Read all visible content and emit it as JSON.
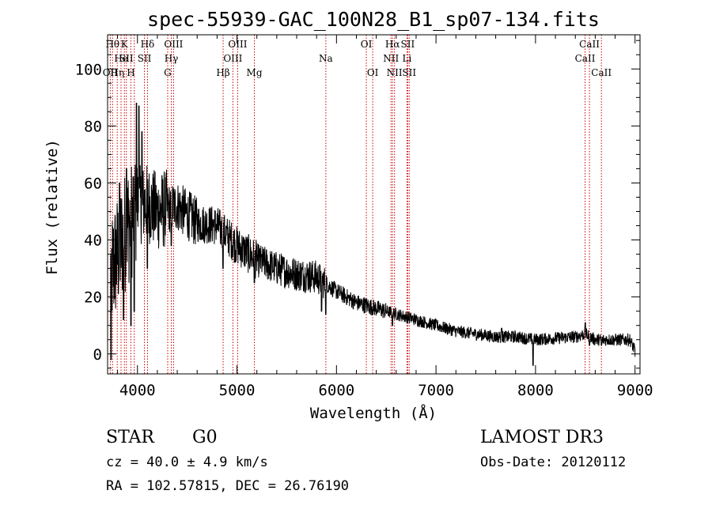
{
  "chart_data": {
    "type": "line",
    "title": "spec-55939-GAC_100N28_B1_sp07-134.fits",
    "xlabel": "Wavelength (Å)",
    "ylabel": "Flux (relative)",
    "xlim": [
      3700,
      9050
    ],
    "ylim": [
      -7,
      112
    ],
    "xticks": [
      4000,
      5000,
      6000,
      7000,
      8000,
      9000
    ],
    "yticks": [
      0,
      20,
      40,
      60,
      80,
      100
    ],
    "grid": false,
    "series": [
      {
        "name": "flux",
        "color": "#000000",
        "continuum": [
          [
            3700,
            25
          ],
          [
            3800,
            35
          ],
          [
            3900,
            45
          ],
          [
            4000,
            52
          ],
          [
            4100,
            53
          ],
          [
            4200,
            50
          ],
          [
            4400,
            52
          ],
          [
            4600,
            46
          ],
          [
            4800,
            45
          ],
          [
            5000,
            38
          ],
          [
            5200,
            33
          ],
          [
            5400,
            30
          ],
          [
            5600,
            28
          ],
          [
            5800,
            27
          ],
          [
            6000,
            22
          ],
          [
            6200,
            18
          ],
          [
            6400,
            16
          ],
          [
            6600,
            14
          ],
          [
            6800,
            12
          ],
          [
            7000,
            10
          ],
          [
            7200,
            8
          ],
          [
            7400,
            7
          ],
          [
            7600,
            6
          ],
          [
            7800,
            6
          ],
          [
            8000,
            5
          ],
          [
            8200,
            5.5
          ],
          [
            8400,
            6
          ],
          [
            8500,
            7
          ],
          [
            8600,
            5
          ],
          [
            8800,
            5
          ],
          [
            8950,
            5
          ],
          [
            9000,
            1
          ]
        ],
        "features": [
          {
            "x": 3734,
            "y": -2
          },
          {
            "x": 3820,
            "y": 60
          },
          {
            "x": 3860,
            "y": 12
          },
          {
            "x": 3890,
            "y": 65
          },
          {
            "x": 3934,
            "y": 10
          },
          {
            "x": 3968,
            "y": 15
          },
          {
            "x": 3990,
            "y": 88
          },
          {
            "x": 4015,
            "y": 87
          },
          {
            "x": 4045,
            "y": 78
          },
          {
            "x": 4101,
            "y": 30
          },
          {
            "x": 4340,
            "y": 38
          },
          {
            "x": 4861,
            "y": 30
          },
          {
            "x": 5175,
            "y": 25
          },
          {
            "x": 5850,
            "y": 15
          },
          {
            "x": 5893,
            "y": 14
          },
          {
            "x": 6563,
            "y": 10
          },
          {
            "x": 7660,
            "y": 9
          },
          {
            "x": 7975,
            "y": -4
          },
          {
            "x": 8500,
            "y": 11
          },
          {
            "x": 8542,
            "y": 3
          },
          {
            "x": 8662,
            "y": 3
          }
        ]
      }
    ],
    "lines": [
      {
        "w": 3727,
        "label": "OII",
        "row": 2
      },
      {
        "w": 3750,
        "label": "Hθ",
        "row": 0
      },
      {
        "w": 3797,
        "label": "Hη",
        "row": 2
      },
      {
        "w": 3835,
        "label": "He",
        "row": 1
      },
      {
        "w": 3869,
        "label": "K",
        "row": 0
      },
      {
        "w": 3889,
        "label": "SII",
        "row": 1
      },
      {
        "w": 3934,
        "label": "H",
        "row": 2
      },
      {
        "w": 3968,
        "label": "",
        "row": 1
      },
      {
        "w": 4101,
        "label": "Hδ",
        "row": 0
      },
      {
        "w": 4070,
        "label": "SII",
        "row": 1
      },
      {
        "w": 4304,
        "label": "G",
        "row": 2
      },
      {
        "w": 4340,
        "label": "Hγ",
        "row": 1
      },
      {
        "w": 4363,
        "label": "OIII",
        "row": 0
      },
      {
        "w": 4861,
        "label": "Hβ",
        "row": 2
      },
      {
        "w": 4959,
        "label": "OIII",
        "row": 1
      },
      {
        "w": 5007,
        "label": "OIII",
        "row": 0
      },
      {
        "w": 5175,
        "label": "Mg",
        "row": 2
      },
      {
        "w": 5893,
        "label": "Na",
        "row": 1
      },
      {
        "w": 6300,
        "label": "OI",
        "row": 0
      },
      {
        "w": 6364,
        "label": "OI",
        "row": 2
      },
      {
        "w": 6548,
        "label": "NII",
        "row": 1
      },
      {
        "w": 6563,
        "label": "Hα",
        "row": 0
      },
      {
        "w": 6583,
        "label": "NII",
        "row": 2
      },
      {
        "w": 6708,
        "label": "Li",
        "row": 1
      },
      {
        "w": 6716,
        "label": "SII",
        "row": 0
      },
      {
        "w": 6731,
        "label": "SII",
        "row": 2
      },
      {
        "w": 8498,
        "label": "CaII",
        "row": 1
      },
      {
        "w": 8542,
        "label": "CaII",
        "row": 0
      },
      {
        "w": 8662,
        "label": "CaII",
        "row": 2
      }
    ],
    "line_color": "#cc0000"
  },
  "info": {
    "class": "STAR",
    "subclass": "G0",
    "survey": "LAMOST DR3",
    "cz": "cz = 40.0 ± 4.9 km/s",
    "obs_date": "Obs-Date: 20120112",
    "coords": "RA = 102.57815, DEC =  26.76190"
  }
}
